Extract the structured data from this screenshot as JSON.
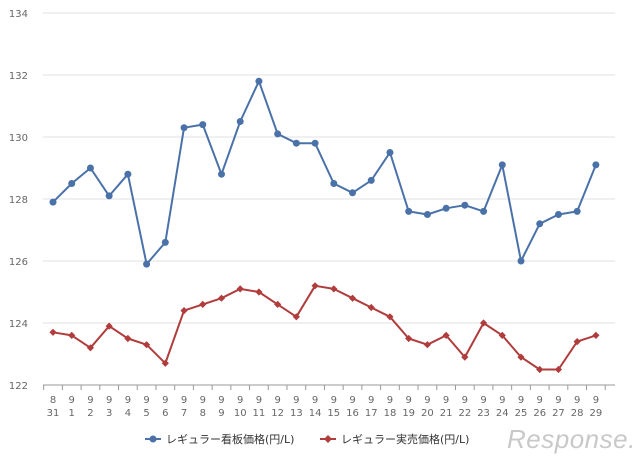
{
  "chart_data": {
    "type": "line",
    "title": "",
    "xlabel": "",
    "ylabel": "",
    "ylim": [
      122,
      134
    ],
    "yticks": [
      122,
      124,
      126,
      128,
      130,
      132,
      134
    ],
    "grid": "horizontal",
    "legend_position": "bottom",
    "x_months": [
      "8",
      "9",
      "9",
      "9",
      "9",
      "9",
      "9",
      "9",
      "9",
      "9",
      "9",
      "9",
      "9",
      "9",
      "9",
      "9",
      "9",
      "9",
      "9",
      "9",
      "9",
      "9",
      "9",
      "9",
      "9",
      "9",
      "9",
      "9",
      "9",
      "9"
    ],
    "x_days": [
      "31",
      "1",
      "2",
      "3",
      "4",
      "5",
      "6",
      "7",
      "8",
      "9",
      "10",
      "11",
      "12",
      "13",
      "14",
      "15",
      "16",
      "17",
      "18",
      "19",
      "20",
      "21",
      "22",
      "23",
      "24",
      "25",
      "26",
      "27",
      "28",
      "29"
    ],
    "series": [
      {
        "name": "レギュラー看板価格(円/L)",
        "color": "#4a72a8",
        "marker": "circle",
        "values": [
          127.9,
          128.5,
          129.0,
          128.1,
          128.8,
          125.9,
          126.6,
          130.3,
          130.4,
          128.8,
          130.5,
          131.8,
          130.1,
          129.8,
          129.8,
          128.5,
          128.2,
          128.6,
          129.5,
          127.6,
          127.5,
          127.7,
          127.8,
          127.6,
          129.1,
          126.0,
          127.2,
          127.5,
          127.6,
          129.1
        ]
      },
      {
        "name": "レギュラー実売価格(円/L)",
        "color": "#b03c3c",
        "marker": "diamond",
        "values": [
          123.7,
          123.6,
          123.2,
          123.9,
          123.5,
          123.3,
          122.7,
          124.4,
          124.6,
          124.8,
          125.1,
          125.0,
          124.6,
          124.2,
          125.2,
          125.1,
          124.8,
          124.5,
          124.2,
          123.5,
          123.3,
          123.6,
          122.9,
          124.0,
          123.6,
          122.9,
          122.5,
          122.5,
          123.4,
          123.6
        ]
      }
    ]
  },
  "watermark": "Response."
}
